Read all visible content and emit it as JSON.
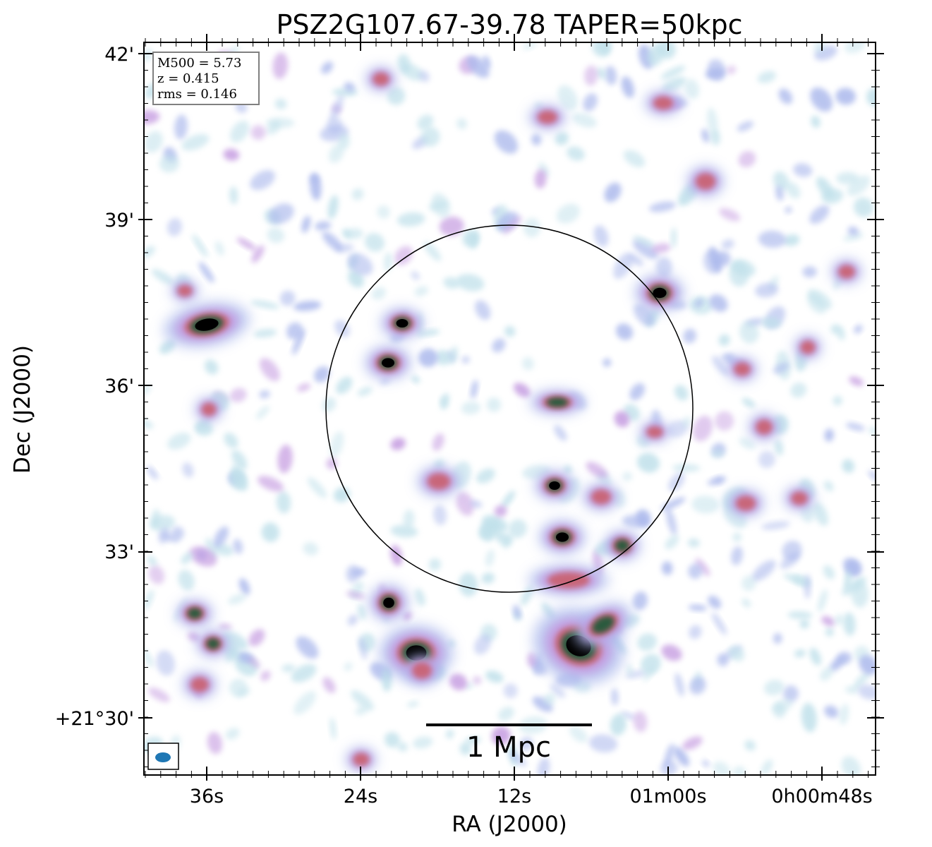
{
  "title": "PSZ2G107.67-39.78 TAPER=50kpc",
  "info_box": {
    "line1": "M500 = 5.73",
    "line2": "z = 0.415",
    "line3": "rms = 0.146"
  },
  "axes": {
    "x_label": "RA (J2000)",
    "y_label": "Dec (J2000)",
    "x_ticks": [
      "36s",
      "24s",
      "12s",
      "01m00s",
      "0h00m48s"
    ],
    "y_ticks": [
      "42'",
      "39'",
      "36'",
      "33'",
      "+21°30'"
    ]
  },
  "scale_bar": {
    "label": "1 Mpc"
  },
  "colors": {
    "noise_light": "#bfe0ea",
    "noise_mid": "#aab8ec",
    "emission_purple": "#c49ae0",
    "emission_red": "#c9606e",
    "emission_green": "#2c5a3c",
    "peak": "#000000",
    "beam": "#1f77b4"
  },
  "icons": {
    "beam": "beam-ellipse-icon"
  }
}
